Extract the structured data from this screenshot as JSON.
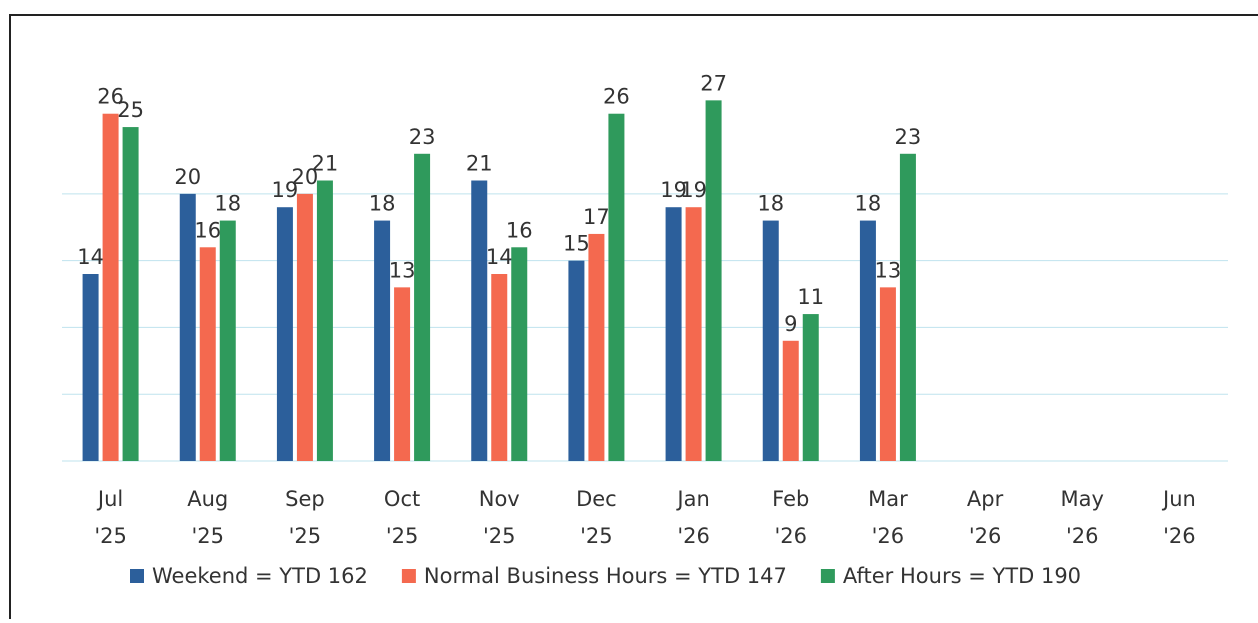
{
  "chart_data": {
    "type": "bar",
    "categories": [
      "Jul '25",
      "Aug '25",
      "Sep '25",
      "Oct '25",
      "Nov '25",
      "Dec '25",
      "Jan '26",
      "Feb '26",
      "Mar '26",
      "Apr '26",
      "May '26",
      "Jun '26"
    ],
    "series": [
      {
        "name": "Weekend = YTD 162",
        "color": "#2c5f9b",
        "values": [
          14,
          20,
          19,
          18,
          21,
          15,
          19,
          18,
          18,
          null,
          null,
          null
        ]
      },
      {
        "name": "Normal Business Hours = YTD 147",
        "color": "#f4694f",
        "values": [
          26,
          16,
          20,
          13,
          14,
          17,
          19,
          9,
          13,
          null,
          null,
          null
        ]
      },
      {
        "name": "After Hours = YTD 190",
        "color": "#2f9a5c",
        "values": [
          25,
          18,
          21,
          23,
          16,
          26,
          27,
          11,
          23,
          null,
          null,
          null
        ]
      }
    ],
    "ylim": [
      0,
      28
    ],
    "yticks": [
      0,
      5,
      10,
      15,
      20
    ],
    "grid": true,
    "legend": "bottom"
  }
}
